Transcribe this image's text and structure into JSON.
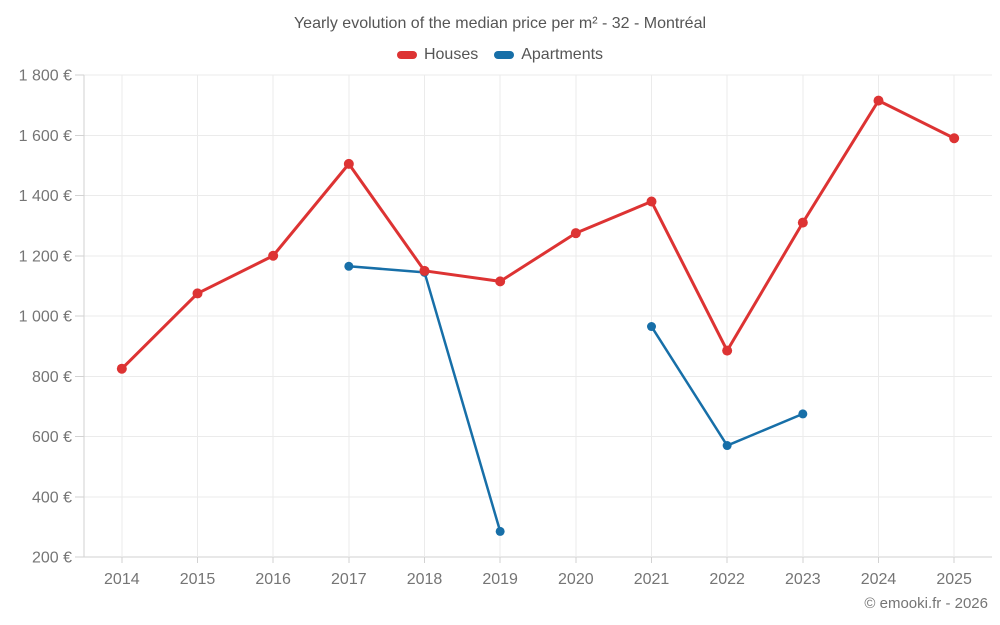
{
  "title": "Yearly evolution of the median price per m² - 32 - Montréal",
  "legend": {
    "items": [
      {
        "label": "Houses",
        "color": "#dd3333"
      },
      {
        "label": "Apartments",
        "color": "#176fa8"
      }
    ]
  },
  "footer": {
    "copyright": "© emooki.fr - 2026"
  },
  "colors": {
    "houses": "#dd3333",
    "apartments": "#176fa8",
    "grid": "#ebebeb",
    "axis": "#d2d2d2",
    "tick_label": "#757575",
    "title_text": "#555555"
  },
  "chart_data": {
    "type": "line",
    "title": "Yearly evolution of the median price per m² - 32 - Montréal",
    "x": [
      "2014",
      "2015",
      "2016",
      "2017",
      "2018",
      "2019",
      "2020",
      "2021",
      "2022",
      "2023",
      "2024",
      "2025"
    ],
    "series": [
      {
        "name": "Apartments",
        "color": "#176fa8",
        "line_width": 2.5,
        "point_radius": 4.5,
        "values": [
          null,
          null,
          null,
          1165,
          1145,
          285,
          null,
          965,
          570,
          675,
          null,
          null
        ]
      },
      {
        "name": "Houses",
        "color": "#dd3333",
        "line_width": 3,
        "point_radius": 5,
        "values": [
          825,
          1075,
          1200,
          1505,
          1150,
          1115,
          1275,
          1380,
          885,
          1310,
          1715,
          1590
        ]
      }
    ],
    "ylim": [
      200,
      1800
    ],
    "yticks": [
      {
        "value": 200,
        "label": "200 €"
      },
      {
        "value": 400,
        "label": "400 €"
      },
      {
        "value": 600,
        "label": "600 €"
      },
      {
        "value": 800,
        "label": "800 €"
      },
      {
        "value": 1000,
        "label": "1 000 €"
      },
      {
        "value": 1200,
        "label": "1 200 €"
      },
      {
        "value": 1400,
        "label": "1 400 €"
      },
      {
        "value": 1600,
        "label": "1 600 €"
      },
      {
        "value": 1800,
        "label": "1 800 €"
      }
    ],
    "grid": true,
    "legend_position": "top",
    "unit": "€ per m²"
  }
}
